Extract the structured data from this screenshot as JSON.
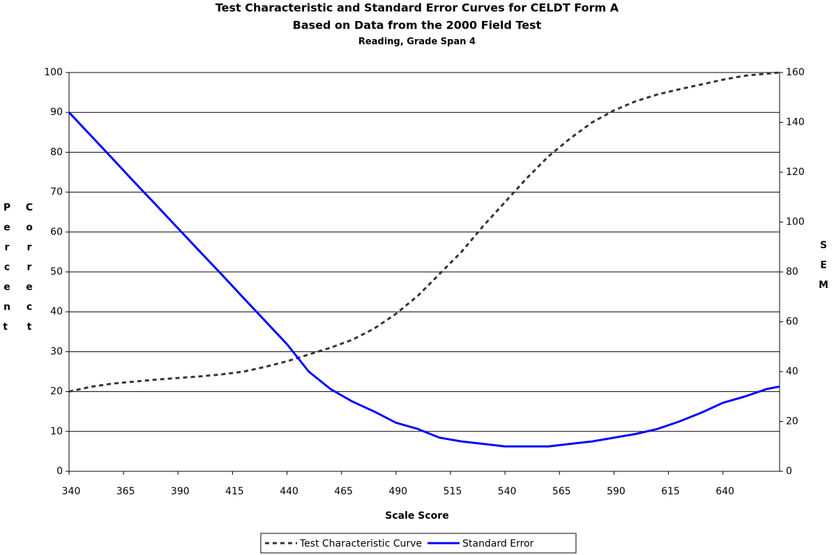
{
  "chart_data": {
    "type": "line",
    "title": "Test Characteristic and Standard Error Curves for CELDT Form A",
    "subtitle": "Based on Data from the 2000 Field Test",
    "subtitle2": "Reading, Grade Span 4",
    "xlabel": "Scale Score",
    "ylabel": "Percent Correct",
    "y2label": "SEM",
    "x": [
      340,
      350,
      360,
      370,
      380,
      390,
      400,
      410,
      420,
      430,
      440,
      450,
      460,
      470,
      480,
      490,
      500,
      510,
      520,
      530,
      540,
      550,
      560,
      570,
      580,
      590,
      600,
      610,
      620,
      630,
      640,
      650,
      660,
      666
    ],
    "series": [
      {
        "name": "Test Characteristic Curve",
        "color": "#333333",
        "dashed": true,
        "values": [
          20,
          21.2,
          22,
          22.5,
          23,
          23.4,
          23.8,
          24.3,
          25,
          26.2,
          27.6,
          29.3,
          31,
          33,
          35.8,
          39.5,
          44,
          49.5,
          55,
          61.5,
          67.5,
          73.5,
          79,
          83.5,
          87.5,
          90.5,
          92.8,
          94.5,
          95.8,
          97,
          98.2,
          99.2,
          99.7,
          100
        ]
      },
      {
        "name": "Standard Error",
        "color": "#0000ff",
        "axis": "y2",
        "values": [
          144,
          134.7,
          125.4,
          116,
          106.8,
          97.5,
          88.2,
          79,
          69.6,
          60.3,
          51,
          40,
          33,
          28,
          24,
          19.5,
          17,
          13.5,
          12,
          11,
          10,
          10,
          10,
          11,
          12,
          13.5,
          15,
          17,
          20,
          23.5,
          27.5,
          30,
          33,
          34
        ]
      }
    ],
    "xlim": [
      340,
      666
    ],
    "xticks": [
      340,
      365,
      390,
      415,
      440,
      465,
      490,
      515,
      540,
      565,
      590,
      615,
      640
    ],
    "ylim": [
      0,
      100
    ],
    "yticks": [
      0,
      10,
      20,
      30,
      40,
      50,
      60,
      70,
      80,
      90,
      100
    ],
    "y2lim": [
      0,
      160
    ],
    "y2ticks": [
      0,
      20,
      40,
      60,
      80,
      100,
      120,
      140,
      160
    ],
    "grid": true,
    "legend": "bottom"
  }
}
